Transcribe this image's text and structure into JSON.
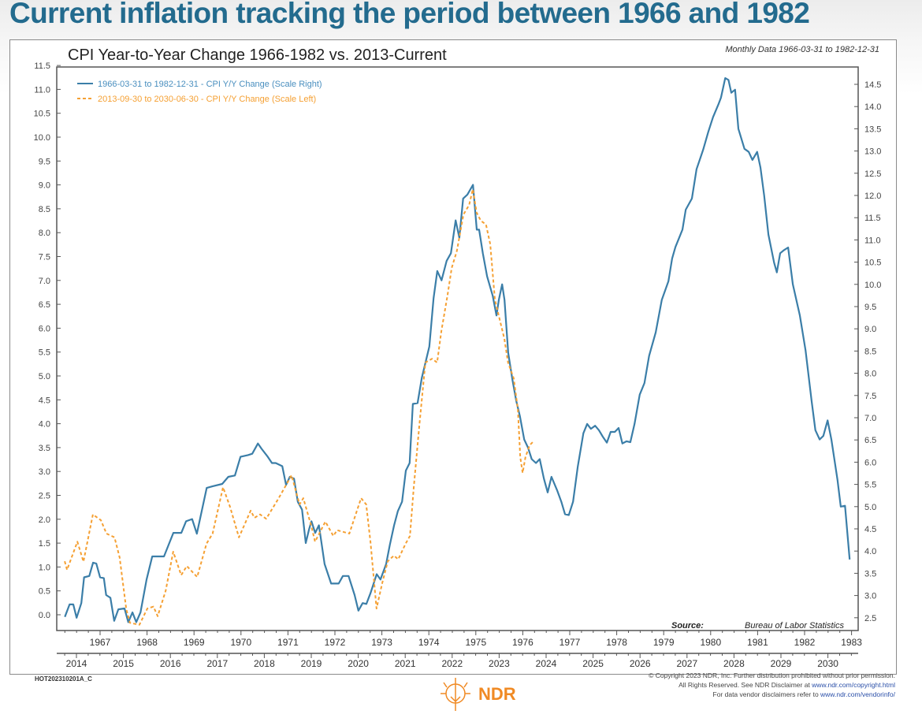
{
  "page_title": "Current inflation tracking the period between 1966 and 1982",
  "chart_data": {
    "type": "line",
    "title": "CPI Year-to-Year Change 1966-1982 vs. 2013-Current",
    "subtitle": "Monthly Data 1966-03-31 to 1982-12-31",
    "source_label": "Source:",
    "source_text": "Bureau of Labor Statistics",
    "grid": false,
    "legend_position": "top-left",
    "y_left": {
      "ylim": [
        0.0,
        11.5
      ],
      "step": 0.5
    },
    "y_right": {
      "ylim": [
        2.5,
        14.5
      ],
      "step": 0.5
    },
    "x_top_ticks": [
      "1967",
      "1968",
      "1969",
      "1970",
      "1971",
      "1972",
      "1973",
      "1974",
      "1975",
      "1976",
      "1977",
      "1978",
      "1979",
      "1980",
      "1981",
      "1982",
      "1983"
    ],
    "x_bottom_ticks": [
      "2014",
      "2015",
      "2016",
      "2017",
      "2018",
      "2019",
      "2020",
      "2021",
      "2022",
      "2023",
      "2024",
      "2025",
      "2026",
      "2027",
      "2028",
      "2029",
      "2030"
    ],
    "series": [
      {
        "name": "1966-03-31 to 1982-12-31 - CPI Y/Y Change (Scale Right)",
        "axis": "right",
        "x_axis": "top",
        "color": "#3b7ea8",
        "style": "solid",
        "points": [
          [
            1966.25,
            2.52
          ],
          [
            1966.35,
            2.8
          ],
          [
            1966.43,
            2.8
          ],
          [
            1966.5,
            2.5
          ],
          [
            1966.6,
            2.83
          ],
          [
            1966.66,
            3.41
          ],
          [
            1966.77,
            3.44
          ],
          [
            1966.85,
            3.74
          ],
          [
            1966.92,
            3.72
          ],
          [
            1967.0,
            3.41
          ],
          [
            1967.08,
            3.39
          ],
          [
            1967.13,
            3.01
          ],
          [
            1967.22,
            2.95
          ],
          [
            1967.3,
            2.43
          ],
          [
            1967.39,
            2.69
          ],
          [
            1967.52,
            2.71
          ],
          [
            1967.6,
            2.4
          ],
          [
            1967.69,
            2.62
          ],
          [
            1967.77,
            2.4
          ],
          [
            1967.86,
            2.62
          ],
          [
            1967.99,
            3.36
          ],
          [
            1968.11,
            3.88
          ],
          [
            1968.36,
            3.88
          ],
          [
            1968.56,
            4.41
          ],
          [
            1968.73,
            4.41
          ],
          [
            1968.83,
            4.67
          ],
          [
            1968.96,
            4.72
          ],
          [
            1969.06,
            4.39
          ],
          [
            1969.27,
            5.42
          ],
          [
            1969.4,
            5.46
          ],
          [
            1969.6,
            5.51
          ],
          [
            1969.73,
            5.67
          ],
          [
            1969.87,
            5.7
          ],
          [
            1969.99,
            6.12
          ],
          [
            1970.15,
            6.16
          ],
          [
            1970.24,
            6.19
          ],
          [
            1970.36,
            6.42
          ],
          [
            1970.44,
            6.3
          ],
          [
            1970.57,
            6.12
          ],
          [
            1970.66,
            5.98
          ],
          [
            1970.74,
            5.98
          ],
          [
            1970.88,
            5.91
          ],
          [
            1970.96,
            5.49
          ],
          [
            1971.04,
            5.67
          ],
          [
            1971.13,
            5.63
          ],
          [
            1971.21,
            5.11
          ],
          [
            1971.3,
            4.93
          ],
          [
            1971.38,
            4.18
          ],
          [
            1971.45,
            4.49
          ],
          [
            1971.5,
            4.67
          ],
          [
            1971.58,
            4.41
          ],
          [
            1971.66,
            4.58
          ],
          [
            1971.78,
            3.71
          ],
          [
            1971.92,
            3.27
          ],
          [
            1972.08,
            3.27
          ],
          [
            1972.17,
            3.44
          ],
          [
            1972.29,
            3.44
          ],
          [
            1972.42,
            3.01
          ],
          [
            1972.5,
            2.66
          ],
          [
            1972.59,
            2.83
          ],
          [
            1972.67,
            2.81
          ],
          [
            1972.76,
            3.06
          ],
          [
            1972.89,
            3.48
          ],
          [
            1972.97,
            3.36
          ],
          [
            1973.09,
            3.71
          ],
          [
            1973.17,
            4.14
          ],
          [
            1973.26,
            4.58
          ],
          [
            1973.34,
            4.9
          ],
          [
            1973.43,
            5.11
          ],
          [
            1973.51,
            5.81
          ],
          [
            1973.59,
            5.98
          ],
          [
            1973.66,
            7.31
          ],
          [
            1973.76,
            7.33
          ],
          [
            1973.85,
            7.9
          ],
          [
            1974.01,
            8.6
          ],
          [
            1974.1,
            9.69
          ],
          [
            1974.18,
            10.3
          ],
          [
            1974.27,
            10.09
          ],
          [
            1974.38,
            10.53
          ],
          [
            1974.47,
            10.7
          ],
          [
            1974.57,
            11.44
          ],
          [
            1974.65,
            11.05
          ],
          [
            1974.73,
            11.93
          ],
          [
            1974.82,
            12.02
          ],
          [
            1974.94,
            12.24
          ],
          [
            1975.02,
            11.23
          ],
          [
            1975.07,
            11.23
          ],
          [
            1975.15,
            10.7
          ],
          [
            1975.24,
            10.18
          ],
          [
            1975.36,
            9.74
          ],
          [
            1975.44,
            9.3
          ],
          [
            1975.49,
            9.65
          ],
          [
            1975.56,
            10.0
          ],
          [
            1975.61,
            9.65
          ],
          [
            1975.69,
            8.46
          ],
          [
            1975.78,
            7.85
          ],
          [
            1975.86,
            7.38
          ],
          [
            1975.94,
            7.03
          ],
          [
            1976.03,
            6.51
          ],
          [
            1976.11,
            6.33
          ],
          [
            1976.19,
            6.07
          ],
          [
            1976.28,
            5.98
          ],
          [
            1976.36,
            6.07
          ],
          [
            1976.45,
            5.63
          ],
          [
            1976.53,
            5.32
          ],
          [
            1976.61,
            5.67
          ],
          [
            1976.73,
            5.37
          ],
          [
            1976.82,
            5.11
          ],
          [
            1976.9,
            4.83
          ],
          [
            1976.98,
            4.81
          ],
          [
            1977.07,
            5.11
          ],
          [
            1977.17,
            5.89
          ],
          [
            1977.29,
            6.65
          ],
          [
            1977.37,
            6.86
          ],
          [
            1977.45,
            6.75
          ],
          [
            1977.54,
            6.82
          ],
          [
            1977.62,
            6.72
          ],
          [
            1977.7,
            6.58
          ],
          [
            1977.79,
            6.44
          ],
          [
            1977.87,
            6.68
          ],
          [
            1977.96,
            6.68
          ],
          [
            1978.04,
            6.77
          ],
          [
            1978.12,
            6.42
          ],
          [
            1978.21,
            6.47
          ],
          [
            1978.29,
            6.45
          ],
          [
            1978.38,
            6.86
          ],
          [
            1978.49,
            7.52
          ],
          [
            1978.59,
            7.78
          ],
          [
            1978.69,
            8.39
          ],
          [
            1978.83,
            8.92
          ],
          [
            1978.96,
            9.65
          ],
          [
            1979.1,
            10.07
          ],
          [
            1979.18,
            10.58
          ],
          [
            1979.25,
            10.84
          ],
          [
            1979.33,
            11.05
          ],
          [
            1979.4,
            11.23
          ],
          [
            1979.47,
            11.68
          ],
          [
            1979.6,
            11.93
          ],
          [
            1979.7,
            12.59
          ],
          [
            1979.84,
            13.03
          ],
          [
            1979.95,
            13.43
          ],
          [
            1980.05,
            13.76
          ],
          [
            1980.17,
            14.06
          ],
          [
            1980.22,
            14.2
          ],
          [
            1980.31,
            14.64
          ],
          [
            1980.38,
            14.6
          ],
          [
            1980.44,
            14.31
          ],
          [
            1980.52,
            14.38
          ],
          [
            1980.59,
            13.5
          ],
          [
            1980.72,
            13.05
          ],
          [
            1980.81,
            12.98
          ],
          [
            1980.89,
            12.8
          ],
          [
            1980.99,
            12.98
          ],
          [
            1981.06,
            12.63
          ],
          [
            1981.14,
            12.0
          ],
          [
            1981.23,
            11.12
          ],
          [
            1981.35,
            10.49
          ],
          [
            1981.41,
            10.27
          ],
          [
            1981.48,
            10.7
          ],
          [
            1981.56,
            10.77
          ],
          [
            1981.65,
            10.83
          ],
          [
            1981.75,
            10.0
          ],
          [
            1981.9,
            9.3
          ],
          [
            1982.02,
            8.52
          ],
          [
            1982.15,
            7.38
          ],
          [
            1982.23,
            6.72
          ],
          [
            1982.32,
            6.51
          ],
          [
            1982.4,
            6.59
          ],
          [
            1982.49,
            6.94
          ],
          [
            1982.57,
            6.51
          ],
          [
            1982.7,
            5.61
          ],
          [
            1982.77,
            5.0
          ],
          [
            1982.86,
            5.02
          ],
          [
            1982.96,
            3.81
          ]
        ]
      },
      {
        "name": "2013-09-30 to 2030-06-30 - CPI Y/Y Change (Scale Left)",
        "axis": "left",
        "x_axis": "bottom",
        "color": "#f5a033",
        "style": "dashed",
        "points": [
          [
            2013.75,
            1.12
          ],
          [
            2013.8,
            0.94
          ],
          [
            2014.02,
            1.53
          ],
          [
            2014.15,
            1.11
          ],
          [
            2014.35,
            2.1
          ],
          [
            2014.52,
            1.98
          ],
          [
            2014.64,
            1.7
          ],
          [
            2014.81,
            1.62
          ],
          [
            2014.92,
            1.2
          ],
          [
            2015.06,
            0.12
          ],
          [
            2015.14,
            -0.17
          ],
          [
            2015.34,
            -0.21
          ],
          [
            2015.51,
            0.13
          ],
          [
            2015.64,
            0.17
          ],
          [
            2015.73,
            -0.03
          ],
          [
            2015.9,
            0.5
          ],
          [
            2016.06,
            1.32
          ],
          [
            2016.23,
            0.83
          ],
          [
            2016.35,
            1.02
          ],
          [
            2016.57,
            0.79
          ],
          [
            2016.77,
            1.49
          ],
          [
            2016.9,
            1.7
          ],
          [
            2017.12,
            2.67
          ],
          [
            2017.27,
            2.26
          ],
          [
            2017.46,
            1.62
          ],
          [
            2017.71,
            2.18
          ],
          [
            2017.79,
            2.03
          ],
          [
            2017.91,
            2.1
          ],
          [
            2018.04,
            2.01
          ],
          [
            2018.3,
            2.43
          ],
          [
            2018.58,
            2.92
          ],
          [
            2018.75,
            2.31
          ],
          [
            2018.83,
            2.44
          ],
          [
            2019.0,
            1.86
          ],
          [
            2019.08,
            1.53
          ],
          [
            2019.3,
            1.95
          ],
          [
            2019.47,
            1.65
          ],
          [
            2019.55,
            1.77
          ],
          [
            2019.81,
            1.7
          ],
          [
            2020.06,
            2.44
          ],
          [
            2020.17,
            2.31
          ],
          [
            2020.26,
            1.53
          ],
          [
            2020.39,
            0.13
          ],
          [
            2020.51,
            0.66
          ],
          [
            2020.63,
            1.12
          ],
          [
            2020.76,
            1.24
          ],
          [
            2020.85,
            1.16
          ],
          [
            2021.01,
            1.49
          ],
          [
            2021.1,
            1.65
          ],
          [
            2021.18,
            2.64
          ],
          [
            2021.3,
            3.96
          ],
          [
            2021.43,
            5.28
          ],
          [
            2021.57,
            5.36
          ],
          [
            2021.68,
            5.28
          ],
          [
            2021.77,
            5.94
          ],
          [
            2021.9,
            6.68
          ],
          [
            2021.99,
            7.26
          ],
          [
            2022.1,
            7.62
          ],
          [
            2022.24,
            8.38
          ],
          [
            2022.36,
            8.58
          ],
          [
            2022.44,
            8.91
          ],
          [
            2022.52,
            8.42
          ],
          [
            2022.61,
            8.25
          ],
          [
            2022.72,
            8.17
          ],
          [
            2022.81,
            7.76
          ],
          [
            2022.91,
            6.6
          ],
          [
            2022.99,
            6.27
          ],
          [
            2023.11,
            5.78
          ],
          [
            2023.19,
            5.28
          ],
          [
            2023.31,
            4.95
          ],
          [
            2023.4,
            4.29
          ],
          [
            2023.45,
            3.3
          ],
          [
            2023.5,
            2.97
          ],
          [
            2023.56,
            3.3
          ],
          [
            2023.65,
            3.55
          ],
          [
            2023.73,
            3.63
          ]
        ]
      }
    ]
  },
  "footer": {
    "code": "HOT202310201A_C",
    "logo_text": "NDR",
    "copyright_line1": "© Copyright 2023 NDR, Inc. Further distribution prohibited without prior permission.",
    "copyright_line2_prefix": "All Rights Reserved. See NDR Disclaimer at ",
    "copyright_line2_link": "www.ndr.com/copyright.html",
    "copyright_line3_prefix": "For data vendor disclaimers refer to ",
    "copyright_line3_link": "www.ndr.com/vendorinfo/"
  }
}
